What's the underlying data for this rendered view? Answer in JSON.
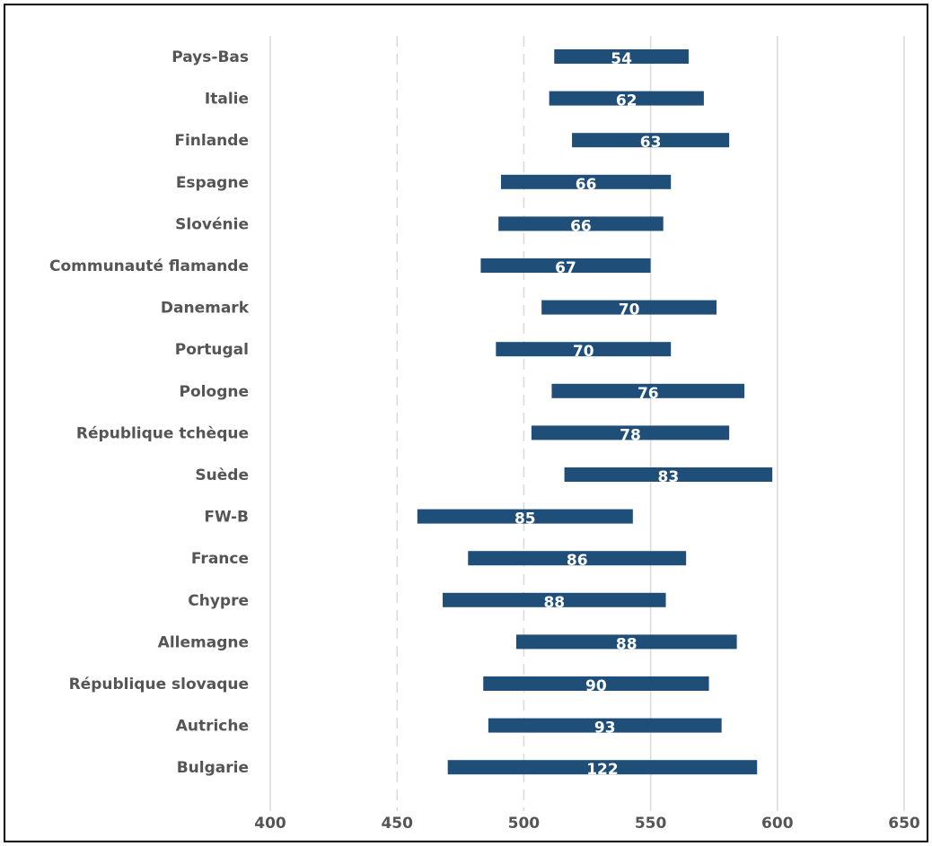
{
  "chart_data": {
    "type": "bar",
    "orientation": "horizontal",
    "style": "floating-range",
    "categories": [
      "Pays-Bas",
      "Italie",
      "Finlande",
      "Espagne",
      "Slovénie",
      "Communauté flamande",
      "Danemark",
      "Portugal",
      "Pologne",
      "République tchèque",
      "Suède",
      "FW-B",
      "France",
      "Chypre",
      "Allemagne",
      "République slovaque",
      "Autriche",
      "Bulgarie"
    ],
    "series": [
      {
        "ranges": [
          [
            512,
            565
          ],
          [
            510,
            571
          ],
          [
            519,
            581
          ],
          [
            491,
            558
          ],
          [
            490,
            555
          ],
          [
            483,
            550
          ],
          [
            507,
            576
          ],
          [
            489,
            558
          ],
          [
            511,
            587
          ],
          [
            503,
            581
          ],
          [
            516,
            598
          ],
          [
            458,
            543
          ],
          [
            478,
            564
          ],
          [
            468,
            556
          ],
          [
            497,
            584
          ],
          [
            484,
            573
          ],
          [
            486,
            578
          ],
          [
            470,
            592
          ]
        ],
        "labels": [
          "54",
          "62",
          "63",
          "66",
          "66",
          "67",
          "70",
          "70",
          "76",
          "78",
          "83",
          "85",
          "86",
          "88",
          "88",
          "90",
          "93",
          "122"
        ]
      }
    ],
    "xlim": [
      400,
      650
    ],
    "xticks": [
      "400",
      "450",
      "500",
      "550",
      "600",
      "650"
    ],
    "grid": "vertical",
    "bar_color": "#1F4E79",
    "gridline_color": "#D9D9D9",
    "title": "",
    "xlabel": "",
    "ylabel": ""
  }
}
